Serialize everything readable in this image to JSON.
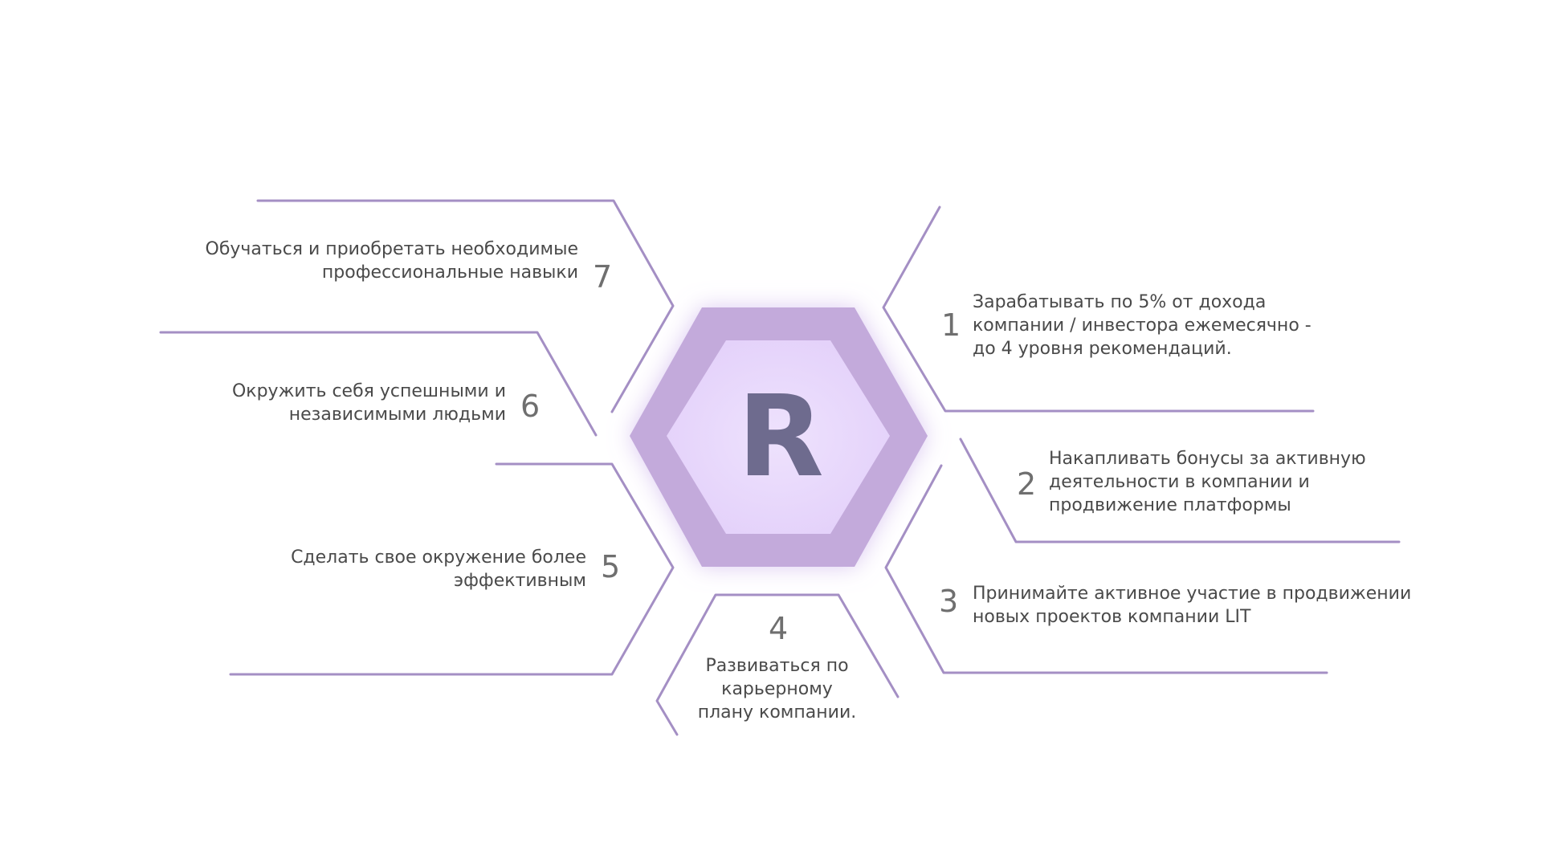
{
  "hub": {
    "logo_letter": "R",
    "colors": {
      "outer_hexagon": "#c3aadb",
      "inner_hexagon": "#e6d5fb",
      "logo_letter": "#6e6b8e",
      "connector_lines": "#a48fc4",
      "text": "#4a4a4a",
      "numbers": "#6f6f6f"
    }
  },
  "items": [
    {
      "number": "1",
      "text": "Зарабатывать по 5% от дохода\nкомпании / инвестора ежемесячно -\nдо 4 уровня рекомендаций."
    },
    {
      "number": "2",
      "text": "Накапливать бонусы за активную\nдеятельности в компании и\nпродвижение платформы"
    },
    {
      "number": "3",
      "text": "Принимайте активное участие в продвижении\nновых проектов компании LIT"
    },
    {
      "number": "4",
      "text": "Развиваться по\nкарьерному\nплану компании."
    },
    {
      "number": "5",
      "text": "Сделать свое окружение более\nэффективным"
    },
    {
      "number": "6",
      "text": "Окружить себя успешными и\nнезависимыми людьми"
    },
    {
      "number": "7",
      "text": "Обучаться и приобретать необходимые\nпрофессиональные навыки"
    }
  ]
}
